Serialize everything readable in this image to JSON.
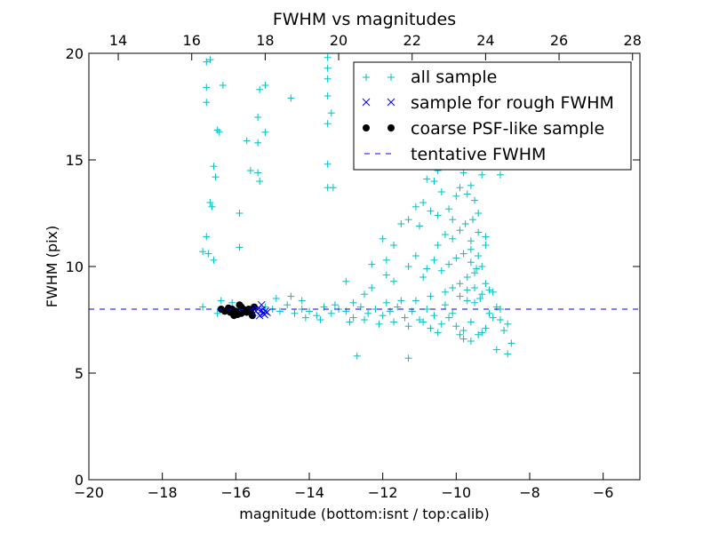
{
  "chart_data": {
    "type": "scatter",
    "title": "FWHM vs magnitudes",
    "xlabel": "magnitude (bottom:isnt / top:calib)",
    "ylabel": "FWHM (pix)",
    "xlim": [
      -20,
      -5
    ],
    "ylim": [
      0,
      20
    ],
    "top_xlim": [
      13.2,
      28.2
    ],
    "x_ticks": [
      -20,
      -18,
      -16,
      -14,
      -12,
      -10,
      -8,
      -6
    ],
    "x_tick_labels": [
      "−20",
      "−18",
      "−16",
      "−14",
      "−12",
      "−10",
      "−8",
      "−6"
    ],
    "top_ticks": [
      14,
      16,
      18,
      20,
      22,
      24,
      26,
      28
    ],
    "top_tick_labels": [
      "14",
      "16",
      "18",
      "20",
      "22",
      "24",
      "26",
      "28"
    ],
    "y_ticks": [
      0,
      5,
      10,
      15,
      20
    ],
    "y_tick_labels": [
      "0",
      "5",
      "10",
      "15",
      "20"
    ],
    "legend_position": "top-right",
    "series": [
      {
        "name": "all sample",
        "marker": "plus",
        "color": "#00bfbf",
        "points": [
          [
            -16.8,
            19.6
          ],
          [
            -16.7,
            19.7
          ],
          [
            -16.35,
            18.5
          ],
          [
            -16.8,
            18.4
          ],
          [
            -15.35,
            18.3
          ],
          [
            -15.2,
            18.5
          ],
          [
            -16.8,
            17.7
          ],
          [
            -15.4,
            17.0
          ],
          [
            -15.2,
            16.3
          ],
          [
            -16.5,
            16.4
          ],
          [
            -16.45,
            16.3
          ],
          [
            -15.7,
            15.9
          ],
          [
            -15.4,
            15.8
          ],
          [
            -16.6,
            14.7
          ],
          [
            -16.55,
            14.2
          ],
          [
            -15.6,
            14.5
          ],
          [
            -15.4,
            14.4
          ],
          [
            -15.35,
            14.0
          ],
          [
            -16.7,
            13.0
          ],
          [
            -16.65,
            12.8
          ],
          [
            -15.9,
            12.5
          ],
          [
            -16.8,
            11.4
          ],
          [
            -15.9,
            10.9
          ],
          [
            -16.9,
            10.7
          ],
          [
            -16.75,
            10.6
          ],
          [
            -16.6,
            10.3
          ],
          [
            -13.5,
            19.8
          ],
          [
            -13.5,
            19.3
          ],
          [
            -13.5,
            18.8
          ],
          [
            -13.5,
            18.0
          ],
          [
            -13.4,
            17.2
          ],
          [
            -13.5,
            16.7
          ],
          [
            -13.5,
            14.8
          ],
          [
            -13.5,
            13.7
          ],
          [
            -13.35,
            13.7
          ],
          [
            -14.5,
            17.9
          ],
          [
            -13.0,
            9.3
          ],
          [
            -12.5,
            8.7
          ],
          [
            -12.3,
            10.1
          ],
          [
            -11.9,
            10.3
          ],
          [
            -12.0,
            11.3
          ],
          [
            -11.7,
            11.0
          ],
          [
            -11.3,
            10.0
          ],
          [
            -11.1,
            10.5
          ],
          [
            -11.5,
            12.0
          ],
          [
            -11.3,
            12.2
          ],
          [
            -11.1,
            12.8
          ],
          [
            -10.9,
            13.0
          ],
          [
            -10.6,
            14.0
          ],
          [
            -10.4,
            13.5
          ],
          [
            -10.2,
            12.7
          ],
          [
            -10.0,
            13.3
          ],
          [
            -9.9,
            13.7
          ],
          [
            -9.7,
            13.4
          ],
          [
            -9.6,
            13.8
          ],
          [
            -9.5,
            13.1
          ],
          [
            -9.4,
            12.5
          ],
          [
            -9.55,
            12.2
          ],
          [
            -9.75,
            12.0
          ],
          [
            -9.9,
            11.7
          ],
          [
            -10.1,
            11.3
          ],
          [
            -10.3,
            11.5
          ],
          [
            -10.5,
            11.0
          ],
          [
            -10.6,
            10.3
          ],
          [
            -10.8,
            9.9
          ],
          [
            -10.4,
            9.8
          ],
          [
            -10.2,
            10.1
          ],
          [
            -10.0,
            10.4
          ],
          [
            -9.8,
            10.6
          ],
          [
            -9.6,
            10.2
          ],
          [
            -9.4,
            10.5
          ],
          [
            -9.3,
            10.0
          ],
          [
            -9.5,
            9.7
          ],
          [
            -9.7,
            9.5
          ],
          [
            -9.9,
            9.2
          ],
          [
            -10.1,
            9.0
          ],
          [
            -10.3,
            8.8
          ],
          [
            -9.2,
            9.2
          ],
          [
            -9.1,
            8.9
          ],
          [
            -9.3,
            8.7
          ],
          [
            -9.5,
            9.0
          ],
          [
            -9.7,
            8.9
          ],
          [
            -9.2,
            11.0
          ],
          [
            -9.4,
            11.6
          ],
          [
            -9.6,
            11.2
          ],
          [
            -9.45,
            9.9
          ],
          [
            -9.35,
            8.5
          ],
          [
            -9.0,
            8.8
          ],
          [
            -8.9,
            8.1
          ],
          [
            -8.7,
            7.0
          ],
          [
            -8.5,
            6.4
          ],
          [
            -8.6,
            5.9
          ],
          [
            -8.9,
            6.1
          ],
          [
            -12.7,
            5.8
          ],
          [
            -11.3,
            5.7
          ],
          [
            -10.8,
            14.1
          ],
          [
            -10.5,
            12.4
          ],
          [
            -11.9,
            9.6
          ],
          [
            -12.3,
            9.0
          ],
          [
            -10.7,
            8.6
          ],
          [
            -11.5,
            8.4
          ],
          [
            -12.8,
            8.3
          ],
          [
            -14.2,
            8.4
          ],
          [
            -14.5,
            8.6
          ],
          [
            -15.2,
            8.1
          ],
          [
            -15.0,
            8.0
          ],
          [
            -14.8,
            7.9
          ],
          [
            -14.6,
            8.2
          ],
          [
            -14.4,
            7.8
          ],
          [
            -14.2,
            8.0
          ],
          [
            -14.0,
            7.9
          ],
          [
            -13.8,
            7.7
          ],
          [
            -13.6,
            8.1
          ],
          [
            -13.4,
            7.8
          ],
          [
            -13.2,
            8.0
          ],
          [
            -13.0,
            7.9
          ],
          [
            -12.8,
            7.6
          ],
          [
            -12.6,
            8.1
          ],
          [
            -12.4,
            7.8
          ],
          [
            -12.2,
            8.0
          ],
          [
            -12.0,
            7.7
          ],
          [
            -11.8,
            7.9
          ],
          [
            -11.6,
            8.1
          ],
          [
            -11.4,
            7.6
          ],
          [
            -11.2,
            7.9
          ],
          [
            -11.0,
            7.5
          ],
          [
            -10.8,
            8.0
          ],
          [
            -10.6,
            7.7
          ],
          [
            -10.4,
            7.3
          ],
          [
            -10.2,
            7.6
          ],
          [
            -10.0,
            7.2
          ],
          [
            -9.8,
            7.0
          ],
          [
            -9.6,
            7.4
          ],
          [
            -9.4,
            6.8
          ],
          [
            -9.2,
            7.1
          ],
          [
            -9.0,
            7.6
          ],
          [
            -8.8,
            8.0
          ],
          [
            -8.6,
            7.3
          ],
          [
            -13.7,
            7.5
          ],
          [
            -12.9,
            7.4
          ],
          [
            -12.1,
            7.3
          ],
          [
            -11.3,
            7.2
          ],
          [
            -10.5,
            6.9
          ],
          [
            -9.9,
            6.8
          ],
          [
            -9.3,
            6.9
          ],
          [
            -11.9,
            8.3
          ],
          [
            -11.1,
            8.4
          ],
          [
            -10.3,
            8.2
          ],
          [
            -9.7,
            8.4
          ],
          [
            -13.3,
            8.2
          ],
          [
            -16.4,
            8.4
          ],
          [
            -16.9,
            8.1
          ],
          [
            -16.5,
            7.8
          ],
          [
            -15.8,
            8.0
          ],
          [
            -16.1,
            8.3
          ],
          [
            -15.5,
            7.7
          ],
          [
            -14.9,
            8.5
          ],
          [
            -14.1,
            7.6
          ],
          [
            -12.5,
            7.5
          ],
          [
            -11.7,
            7.4
          ],
          [
            -10.9,
            7.4
          ],
          [
            -10.1,
            7.8
          ],
          [
            -9.9,
            8.6
          ],
          [
            -9.5,
            8.3
          ],
          [
            -9.1,
            7.8
          ],
          [
            -8.8,
            7.5
          ],
          [
            -10.7,
            7.1
          ],
          [
            -9.8,
            6.6
          ],
          [
            -9.6,
            6.5
          ],
          [
            -10.5,
            14.5
          ],
          [
            -9.3,
            14.3
          ],
          [
            -9.8,
            14.4
          ],
          [
            -8.8,
            14.3
          ],
          [
            -10.1,
            12.2
          ],
          [
            -10.7,
            12.6
          ],
          [
            -11.0,
            11.9
          ],
          [
            -9.2,
            11.4
          ],
          [
            -9.6,
            10.8
          ],
          [
            -10.9,
            9.5
          ],
          [
            -11.7,
            9.3
          ]
        ]
      },
      {
        "name": "sample for rough FWHM",
        "marker": "x",
        "color": "#0000ff",
        "points": [
          [
            -15.3,
            8.2
          ],
          [
            -15.25,
            7.8
          ],
          [
            -15.2,
            7.9
          ],
          [
            -15.35,
            7.7
          ],
          [
            -15.4,
            8.0
          ],
          [
            -15.15,
            7.85
          ],
          [
            -15.3,
            7.95
          ],
          [
            -15.22,
            7.75
          ],
          [
            -15.45,
            7.9
          ]
        ]
      },
      {
        "name": "coarse PSF-like sample",
        "marker": "dot",
        "color": "#000000",
        "points": [
          [
            -16.4,
            8.0
          ],
          [
            -16.3,
            7.9
          ],
          [
            -16.2,
            8.05
          ],
          [
            -16.15,
            7.85
          ],
          [
            -16.1,
            8.0
          ],
          [
            -16.0,
            7.9
          ],
          [
            -15.95,
            7.75
          ],
          [
            -15.9,
            8.2
          ],
          [
            -15.85,
            7.8
          ],
          [
            -15.8,
            8.0
          ],
          [
            -15.75,
            7.95
          ],
          [
            -15.7,
            7.85
          ],
          [
            -15.6,
            7.9
          ],
          [
            -15.55,
            7.7
          ],
          [
            -15.5,
            8.1
          ],
          [
            -16.05,
            7.7
          ],
          [
            -15.85,
            8.1
          ],
          [
            -15.65,
            8.0
          ]
        ]
      },
      {
        "name": "tentative FWHM",
        "marker": "dashed-line",
        "color": "#0000ff",
        "y": 8.0
      }
    ]
  }
}
